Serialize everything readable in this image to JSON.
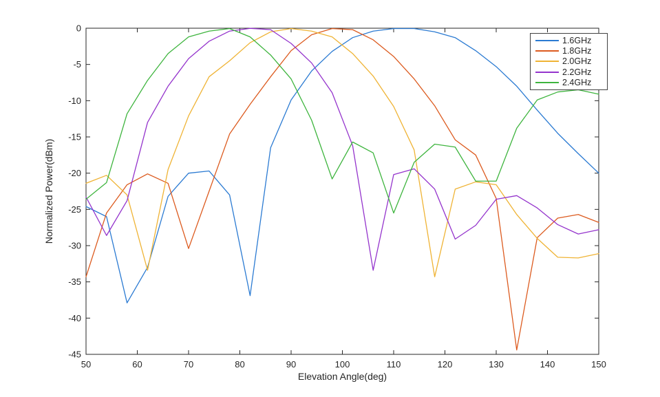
{
  "figure": {
    "background": "#ffffff",
    "axis_color": "#252525",
    "text_color": "#252525"
  },
  "chart_data": {
    "type": "line",
    "title": "",
    "xlabel": "Elevation Angle(deg)",
    "ylabel": "Normalized Power(dBm)",
    "xlim": [
      50,
      150
    ],
    "ylim": [
      -45,
      0
    ],
    "xticks": [
      50,
      60,
      70,
      80,
      90,
      100,
      110,
      120,
      130,
      140,
      150
    ],
    "yticks": [
      0,
      -5,
      -10,
      -15,
      -20,
      -25,
      -30,
      -35,
      -40,
      -45
    ],
    "grid": false,
    "legend_position": "top-right",
    "x": [
      50,
      54,
      58,
      62,
      66,
      70,
      74,
      78,
      82,
      86,
      90,
      94,
      98,
      102,
      106,
      110,
      114,
      118,
      122,
      126,
      130,
      134,
      138,
      142,
      146,
      150
    ],
    "series": [
      {
        "name": "1.6GHz",
        "color": "#2A7AD2",
        "values": [
          -24.6,
          -26.0,
          -37.9,
          -33.0,
          -23.2,
          -20.0,
          -19.7,
          -23.0,
          -36.9,
          -16.5,
          -9.9,
          -5.9,
          -3.2,
          -1.3,
          -0.4,
          -0.05,
          -0.05,
          -0.5,
          -1.3,
          -3.1,
          -5.3,
          -8.0,
          -11.3,
          -14.5,
          -17.3,
          -20.0
        ]
      },
      {
        "name": "1.8GHz",
        "color": "#DC5A1E",
        "values": [
          -34.3,
          -25.5,
          -21.6,
          -20.1,
          -21.4,
          -30.4,
          -22.5,
          -14.6,
          -10.5,
          -6.7,
          -3.1,
          -0.9,
          -0.05,
          -0.2,
          -1.6,
          -3.9,
          -7.0,
          -10.7,
          -15.4,
          -17.5,
          -23.5,
          -44.4,
          -28.9,
          -26.2,
          -25.7,
          -26.8
        ]
      },
      {
        "name": "2.0GHz",
        "color": "#EFB334",
        "values": [
          -21.4,
          -20.3,
          -23.0,
          -33.4,
          -19.5,
          -12.1,
          -6.7,
          -4.5,
          -2.0,
          -0.5,
          -0.05,
          -0.4,
          -1.2,
          -3.5,
          -6.6,
          -10.8,
          -16.8,
          -34.3,
          -22.2,
          -21.2,
          -21.6,
          -25.7,
          -29.0,
          -31.6,
          -31.7,
          -31.1
        ]
      },
      {
        "name": "2.2GHz",
        "color": "#9433CC",
        "values": [
          -23.3,
          -28.6,
          -23.8,
          -13.0,
          -8.0,
          -4.2,
          -1.8,
          -0.4,
          -0.02,
          -0.2,
          -2.1,
          -4.8,
          -8.9,
          -16.2,
          -33.4,
          -20.2,
          -19.4,
          -22.2,
          -29.1,
          -27.2,
          -23.6,
          -23.1,
          -24.8,
          -27.1,
          -28.4,
          -27.8
        ]
      },
      {
        "name": "2.4GHz",
        "color": "#3DB43D",
        "values": [
          -23.6,
          -21.3,
          -11.8,
          -7.2,
          -3.5,
          -1.2,
          -0.4,
          -0.05,
          -1.2,
          -3.7,
          -7.0,
          -12.7,
          -20.8,
          -15.7,
          -17.2,
          -25.5,
          -18.5,
          -16.0,
          -16.4,
          -21.1,
          -21.1,
          -13.8,
          -9.9,
          -8.8,
          -8.5,
          -9.1
        ]
      }
    ]
  }
}
